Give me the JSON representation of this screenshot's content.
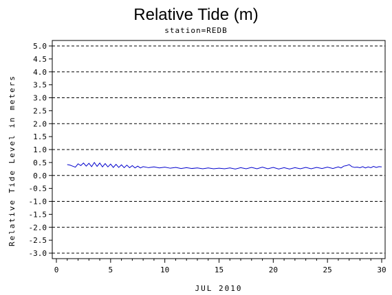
{
  "chart_data": {
    "type": "line",
    "title": "Relative Tide (m)",
    "subtitle": "station=REDB",
    "xlabel": "JUL 2010",
    "ylabel": "Relative Tide Level in meters",
    "xlim": [
      0,
      30
    ],
    "ylim": [
      -3.0,
      5.0
    ],
    "x_ticks": [
      0,
      5,
      10,
      15,
      20,
      25,
      30
    ],
    "y_ticks": [
      -3.0,
      -2.5,
      -2.0,
      -1.5,
      -1.0,
      -0.5,
      0.0,
      0.5,
      1.0,
      1.5,
      2.0,
      2.5,
      3.0,
      3.5,
      4.0,
      4.5,
      5.0
    ],
    "y_tick_labels": [
      "-3.0",
      "-2.5",
      "-2.0",
      "-1.5",
      "-1.0",
      "-0.5",
      "0.0",
      "0.5",
      "1.0",
      "1.5",
      "2.0",
      "2.5",
      "3.0",
      "3.5",
      "4.0",
      "4.5",
      "5.0"
    ],
    "grid": {
      "y_dashed_lines_at": [
        -3.0,
        -2.0,
        -1.0,
        0.0,
        1.0,
        2.0,
        3.0,
        4.0,
        5.0
      ]
    },
    "line_color": "#0000cc",
    "series": [
      {
        "x": [
          1.0,
          1.25,
          1.5,
          1.75,
          2.0,
          2.25,
          2.5,
          2.75,
          3.0,
          3.25,
          3.5,
          3.75,
          4.0,
          4.25,
          4.5,
          4.75,
          5.0,
          5.25,
          5.5,
          5.75,
          6.0,
          6.25,
          6.5,
          6.75,
          7.0,
          7.25,
          7.5,
          7.75,
          8.0,
          8.5,
          9.0,
          9.5,
          10.0,
          10.5,
          11.0,
          11.5,
          12.0,
          12.5,
          13.0,
          13.5,
          14.0,
          14.5,
          15.0,
          15.5,
          16.0,
          16.5,
          17.0,
          17.5,
          18.0,
          18.5,
          19.0,
          19.5,
          20.0,
          20.5,
          21.0,
          21.5,
          22.0,
          22.5,
          23.0,
          23.5,
          24.0,
          24.5,
          25.0,
          25.5,
          26.0,
          26.25,
          26.5,
          26.75,
          27.0,
          27.25,
          27.5,
          27.75,
          28.0,
          28.25,
          28.5,
          28.75,
          29.0,
          29.25,
          29.5,
          29.75,
          30.0
        ],
        "y": [
          0.42,
          0.4,
          0.36,
          0.32,
          0.45,
          0.38,
          0.48,
          0.36,
          0.47,
          0.34,
          0.5,
          0.35,
          0.48,
          0.33,
          0.46,
          0.33,
          0.44,
          0.31,
          0.43,
          0.31,
          0.41,
          0.3,
          0.4,
          0.3,
          0.38,
          0.29,
          0.36,
          0.29,
          0.34,
          0.3,
          0.33,
          0.29,
          0.32,
          0.28,
          0.31,
          0.27,
          0.3,
          0.27,
          0.29,
          0.26,
          0.29,
          0.26,
          0.28,
          0.26,
          0.29,
          0.25,
          0.3,
          0.26,
          0.31,
          0.26,
          0.32,
          0.26,
          0.31,
          0.25,
          0.3,
          0.25,
          0.3,
          0.26,
          0.31,
          0.26,
          0.31,
          0.27,
          0.32,
          0.27,
          0.33,
          0.29,
          0.36,
          0.38,
          0.42,
          0.34,
          0.31,
          0.32,
          0.3,
          0.34,
          0.29,
          0.33,
          0.3,
          0.35,
          0.31,
          0.34,
          0.33
        ]
      }
    ]
  }
}
